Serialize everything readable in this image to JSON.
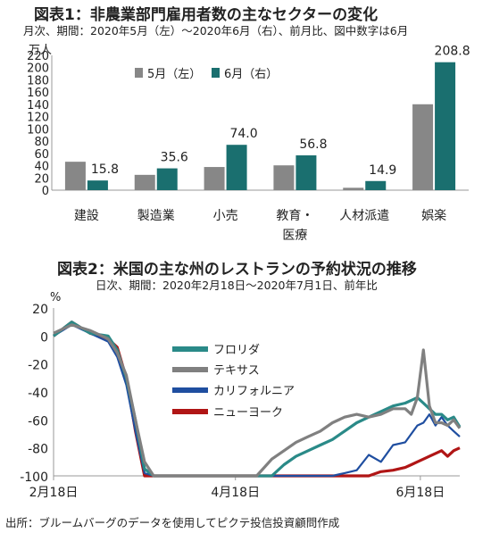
{
  "chart1": {
    "title": "図表1：非農業部門雇用者数の主なセクターの変化",
    "subtitle": "月次、期間：2020年5月（左）～2020年6月（右）、前月比、図中数字は6月",
    "unit": "万人",
    "colors": {
      "may": "#878787",
      "june": "#1a6f6f"
    }
  },
  "chart2": {
    "title": "図表2：米国の主な州のレストランの予約状況の推移",
    "subtitle": "日次、期間：2020年2月18日～2020年7月1日、前年比",
    "unit": "%",
    "colors": {
      "florida": "#2a8a88",
      "texas": "#808080",
      "california": "#1f4ea0",
      "newyork": "#b01515"
    }
  },
  "source": "出所：ブルームバーグのデータを使用してピクテ投信投資顧問作成",
  "chart_data": [
    {
      "type": "bar",
      "title": "図表1：非農業部門雇用者数の主なセクターの変化",
      "ylabel": "万人",
      "ylim": [
        0,
        220
      ],
      "yticks": [
        0,
        20,
        40,
        60,
        80,
        100,
        120,
        140,
        160,
        180,
        200,
        220
      ],
      "categories": [
        "建設",
        "製造業",
        "小売",
        "教育・医療",
        "人材派遣",
        "娯楽"
      ],
      "series": [
        {
          "name": "5月（左）",
          "values": [
            46.4,
            25.0,
            37.8,
            40.5,
            3.9,
            140.2
          ]
        },
        {
          "name": "6月（右）",
          "values": [
            15.8,
            35.6,
            74.0,
            56.8,
            14.9,
            208.8
          ]
        }
      ],
      "data_labels": [
        "15.8",
        "35.6",
        "74.0",
        "56.8",
        "14.9",
        "208.8"
      ],
      "legend": "top-left",
      "grid": false
    },
    {
      "type": "line",
      "title": "図表2：米国の主な州のレストランの予約状況の推移",
      "ylabel": "%",
      "ylim": [
        -100,
        20
      ],
      "yticks": [
        20,
        0,
        -20,
        -40,
        -60,
        -80,
        -100
      ],
      "xlim": [
        "2020-02-18",
        "2020-07-01"
      ],
      "xticks": [
        "2月18日",
        "4月18日",
        "6月18日"
      ],
      "legend": "center",
      "grid": false,
      "x": [
        "2020-02-18",
        "2020-02-24",
        "2020-03-01",
        "2020-03-07",
        "2020-03-10",
        "2020-03-13",
        "2020-03-16",
        "2020-03-19",
        "2020-03-22",
        "2020-03-25",
        "2020-04-25",
        "2020-04-30",
        "2020-05-04",
        "2020-05-08",
        "2020-05-12",
        "2020-05-16",
        "2020-05-20",
        "2020-05-24",
        "2020-05-28",
        "2020-06-01",
        "2020-06-05",
        "2020-06-09",
        "2020-06-13",
        "2020-06-15",
        "2020-06-17",
        "2020-06-19",
        "2020-06-21",
        "2020-06-23",
        "2020-06-25",
        "2020-06-27",
        "2020-06-29",
        "2020-07-01"
      ],
      "series": [
        {
          "name": "フロリダ",
          "values": [
            0,
            10,
            2,
            0,
            -10,
            -30,
            -60,
            -95,
            -100,
            -100,
            -100,
            -100,
            -92,
            -86,
            -82,
            -78,
            -74,
            -68,
            -62,
            -58,
            -54,
            -50,
            -48,
            -46,
            -44,
            -48,
            -52,
            -56,
            -56,
            -60,
            -58,
            -65
          ]
        },
        {
          "name": "テキサス",
          "values": [
            2,
            8,
            4,
            -2,
            -12,
            -28,
            -60,
            -90,
            -100,
            -100,
            -100,
            -88,
            -82,
            -76,
            -72,
            -68,
            -62,
            -58,
            -56,
            -58,
            -56,
            -52,
            -52,
            -56,
            -44,
            -10,
            -50,
            -62,
            -62,
            -64,
            -60,
            -66
          ]
        },
        {
          "name": "カリフォルニア",
          "values": [
            0,
            8,
            2,
            -4,
            -15,
            -35,
            -68,
            -98,
            -100,
            -100,
            -100,
            -100,
            -100,
            -100,
            -100,
            -100,
            -100,
            -98,
            -96,
            -85,
            -90,
            -78,
            -76,
            -70,
            -64,
            -62,
            -56,
            -64,
            -58,
            -64,
            -68,
            -72
          ]
        },
        {
          "name": "ニューヨーク",
          "values": [
            0,
            10,
            2,
            -2,
            -8,
            -30,
            -68,
            -100,
            -100,
            -100,
            -100,
            -100,
            -100,
            -100,
            -100,
            -100,
            -100,
            -100,
            -100,
            -100,
            -97,
            -96,
            -94,
            -92,
            -90,
            -88,
            -86,
            -84,
            -82,
            -86,
            -82,
            -80
          ]
        }
      ]
    }
  ]
}
